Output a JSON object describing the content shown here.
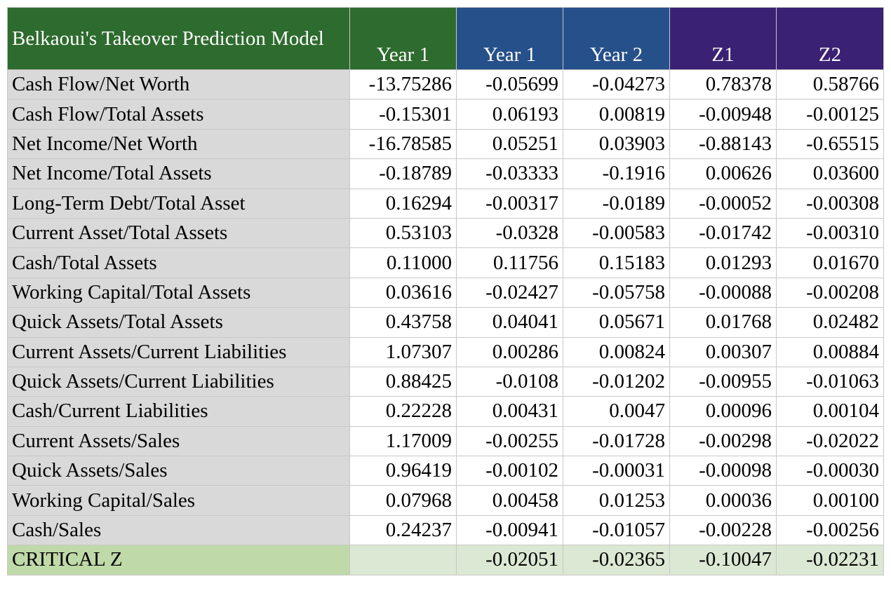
{
  "colors": {
    "header_green": "#2e6b2e",
    "header_blue": "#26508a",
    "header_purple": "#3b2173",
    "label_gray": "#d9d9d9",
    "critical_label_green": "#c0d9a8",
    "critical_cell_green": "#dbe8d3"
  },
  "table": {
    "title": "Belkaoui's Takeover Prediction Model",
    "headers": [
      "Year 1",
      "Year 1",
      "Year 2",
      "Z1",
      "Z2"
    ],
    "rows": [
      {
        "label": "Cash Flow/Net Worth",
        "values": [
          "-13.75286",
          "-0.05699",
          "-0.04273",
          "0.78378",
          "0.58766"
        ]
      },
      {
        "label": "Cash Flow/Total Assets",
        "values": [
          "-0.15301",
          "0.06193",
          "0.00819",
          "-0.00948",
          "-0.00125"
        ]
      },
      {
        "label": "Net Income/Net Worth",
        "values": [
          "-16.78585",
          "0.05251",
          "0.03903",
          "-0.88143",
          "-0.65515"
        ]
      },
      {
        "label": "Net Income/Total Assets",
        "values": [
          "-0.18789",
          "-0.03333",
          "-0.1916",
          "0.00626",
          "0.03600"
        ]
      },
      {
        "label": "Long-Term Debt/Total Asset",
        "values": [
          "0.16294",
          "-0.00317",
          "-0.0189",
          "-0.00052",
          "-0.00308"
        ]
      },
      {
        "label": "Current Asset/Total Assets",
        "values": [
          "0.53103",
          "-0.0328",
          "-0.00583",
          "-0.01742",
          "-0.00310"
        ]
      },
      {
        "label": "Cash/Total Assets",
        "values": [
          "0.11000",
          "0.11756",
          "0.15183",
          "0.01293",
          "0.01670"
        ]
      },
      {
        "label": "Working Capital/Total Assets",
        "values": [
          "0.03616",
          "-0.02427",
          "-0.05758",
          "-0.00088",
          "-0.00208"
        ]
      },
      {
        "label": "Quick Assets/Total Assets",
        "values": [
          "0.43758",
          "0.04041",
          "0.05671",
          "0.01768",
          "0.02482"
        ]
      },
      {
        "label": "Current Assets/Current Liabilities",
        "values": [
          "1.07307",
          "0.00286",
          "0.00824",
          "0.00307",
          "0.00884"
        ]
      },
      {
        "label": "Quick Assets/Current Liabilities",
        "values": [
          "0.88425",
          "-0.0108",
          "-0.01202",
          "-0.00955",
          "-0.01063"
        ]
      },
      {
        "label": "Cash/Current Liabilities",
        "values": [
          "0.22228",
          "0.00431",
          "0.0047",
          "0.00096",
          "0.00104"
        ]
      },
      {
        "label": "Current Assets/Sales",
        "values": [
          "1.17009",
          "-0.00255",
          "-0.01728",
          "-0.00298",
          "-0.02022"
        ]
      },
      {
        "label": "Quick Assets/Sales",
        "values": [
          "0.96419",
          "-0.00102",
          "-0.00031",
          "-0.00098",
          "-0.00030"
        ]
      },
      {
        "label": "Working Capital/Sales",
        "values": [
          "0.07968",
          "0.00458",
          "0.01253",
          "0.00036",
          "0.00100"
        ]
      },
      {
        "label": "Cash/Sales",
        "values": [
          "0.24237",
          "-0.00941",
          "-0.01057",
          "-0.00228",
          "-0.00256"
        ]
      }
    ],
    "critical": {
      "label": "CRITICAL Z",
      "values": [
        "",
        "-0.02051",
        "-0.02365",
        "-0.10047",
        "-0.02231"
      ]
    }
  }
}
